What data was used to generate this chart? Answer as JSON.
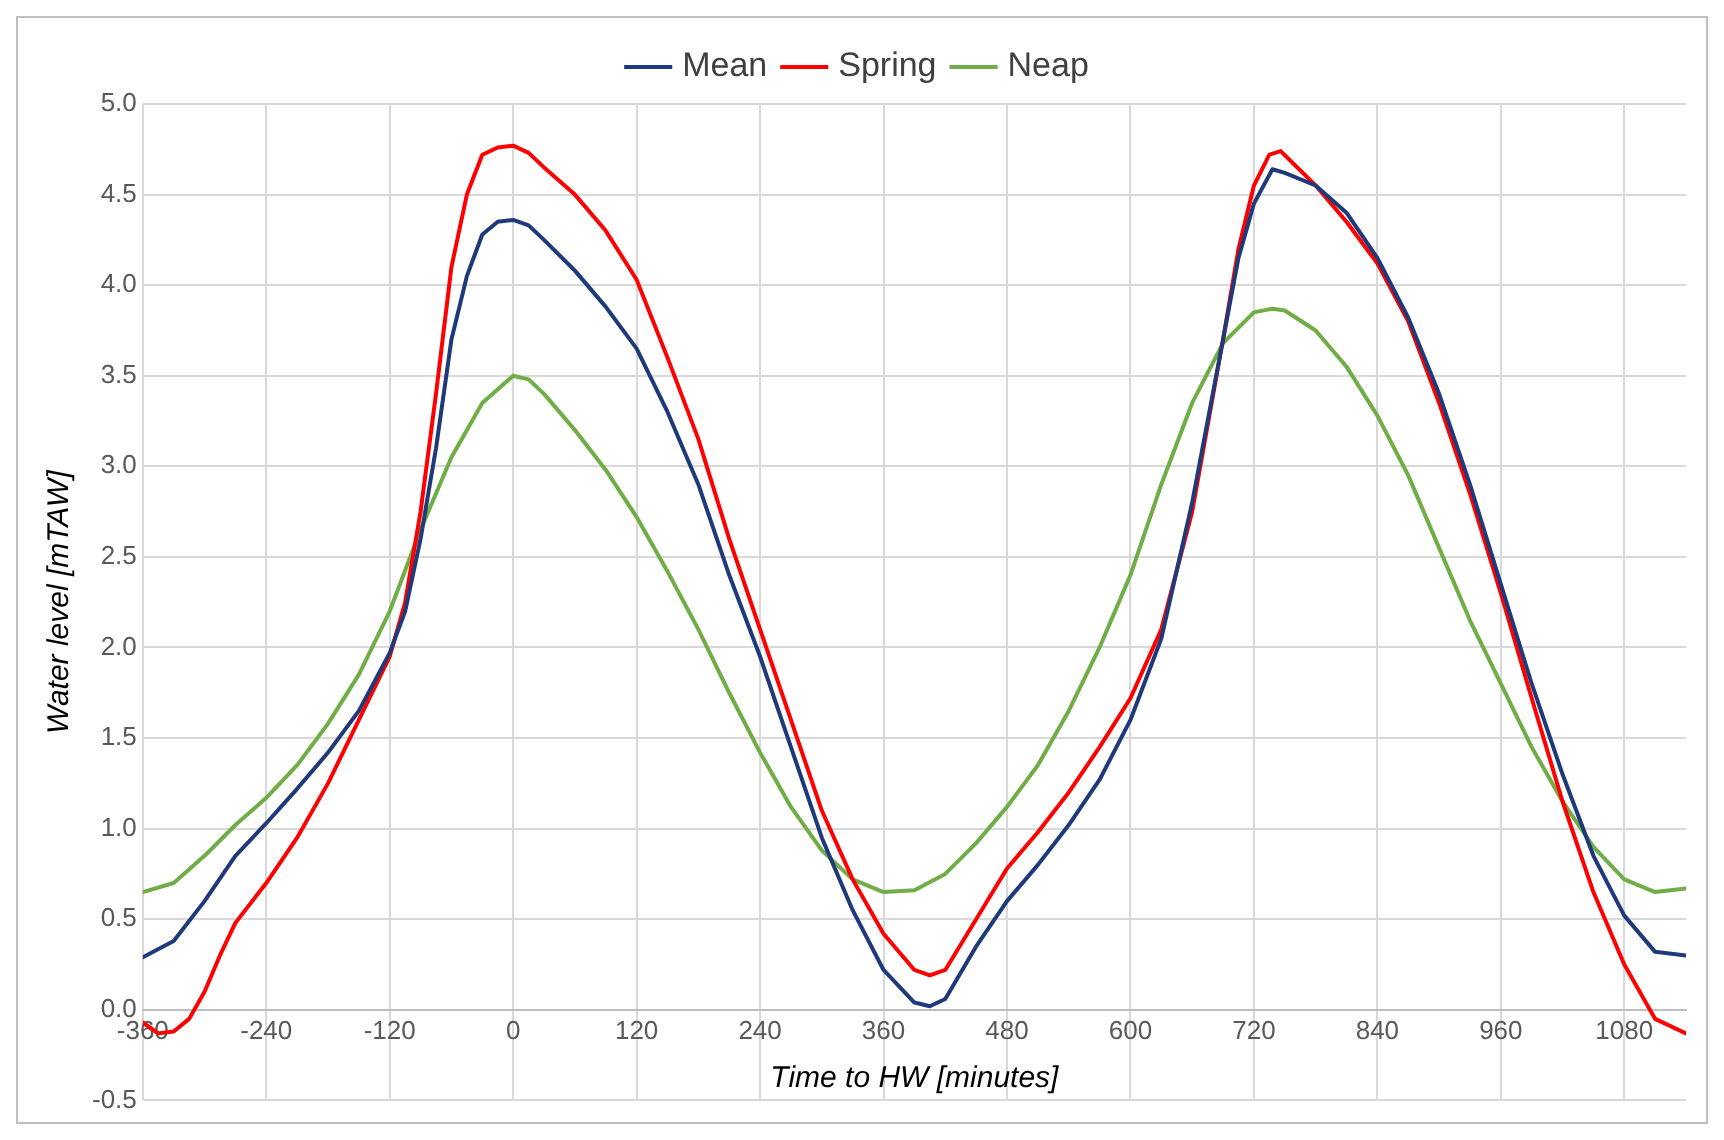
{
  "chart_data": {
    "type": "line",
    "xlabel": "Time to HW [minutes]",
    "ylabel": "Water level [mTAW]",
    "xlim": [
      -360,
      1140
    ],
    "ylim": [
      -0.5,
      5
    ],
    "xticks": [
      -360,
      -240,
      -120,
      0,
      120,
      240,
      360,
      480,
      600,
      720,
      840,
      960,
      1080
    ],
    "yticks": [
      {
        "value": -0.5,
        "label": "-0.5"
      },
      {
        "value": 0,
        "label": "0.0"
      },
      {
        "value": 0.5,
        "label": "0.5"
      },
      {
        "value": 1,
        "label": "1.0"
      },
      {
        "value": 1.5,
        "label": "1.5"
      },
      {
        "value": 2,
        "label": "2.0"
      },
      {
        "value": 2.5,
        "label": "2.5"
      },
      {
        "value": 3,
        "label": "3.0"
      },
      {
        "value": 3.5,
        "label": "3.5"
      },
      {
        "value": 4,
        "label": "4.0"
      },
      {
        "value": 4.5,
        "label": "4.5"
      },
      {
        "value": 5,
        "label": "5.0"
      }
    ],
    "grid": true,
    "legend": "top",
    "marker": "none",
    "line_style": "solid",
    "series": [
      {
        "name": "Mean",
        "color": "#1f3a7a",
        "x": [
          -360,
          -330,
          -300,
          -270,
          -240,
          -210,
          -180,
          -150,
          -120,
          -105,
          -90,
          -75,
          -60,
          -45,
          -30,
          -15,
          0,
          15,
          30,
          60,
          90,
          120,
          150,
          180,
          210,
          240,
          270,
          300,
          330,
          360,
          390,
          405,
          420,
          450,
          480,
          510,
          540,
          570,
          600,
          630,
          660,
          690,
          705,
          720,
          738,
          750,
          780,
          810,
          840,
          870,
          900,
          930,
          960,
          990,
          1020,
          1050,
          1080,
          1110,
          1140
        ],
        "values": [
          0.29,
          0.38,
          0.6,
          0.85,
          1.03,
          1.22,
          1.42,
          1.65,
          1.97,
          2.2,
          2.6,
          3.1,
          3.7,
          4.05,
          4.28,
          4.35,
          4.36,
          4.33,
          4.25,
          4.08,
          3.88,
          3.65,
          3.3,
          2.9,
          2.4,
          1.95,
          1.45,
          0.95,
          0.55,
          0.22,
          0.04,
          0.02,
          0.06,
          0.35,
          0.6,
          0.8,
          1.02,
          1.27,
          1.6,
          2.05,
          2.8,
          3.7,
          4.15,
          4.45,
          4.64,
          4.62,
          4.55,
          4.4,
          4.15,
          3.82,
          3.4,
          2.9,
          2.35,
          1.8,
          1.3,
          0.85,
          0.52,
          0.32,
          0.3
        ]
      },
      {
        "name": "Spring",
        "color": "#ff0000",
        "x": [
          -360,
          -345,
          -330,
          -315,
          -300,
          -285,
          -270,
          -240,
          -210,
          -180,
          -150,
          -120,
          -105,
          -90,
          -75,
          -60,
          -45,
          -30,
          -15,
          0,
          15,
          30,
          60,
          90,
          120,
          150,
          180,
          210,
          240,
          270,
          300,
          330,
          360,
          390,
          405,
          420,
          450,
          480,
          510,
          540,
          570,
          600,
          630,
          660,
          690,
          705,
          720,
          735,
          746,
          780,
          810,
          840,
          870,
          900,
          930,
          960,
          990,
          1020,
          1050,
          1080,
          1110,
          1140
        ],
        "values": [
          -0.07,
          -0.13,
          -0.12,
          -0.05,
          0.1,
          0.3,
          0.48,
          0.7,
          0.95,
          1.25,
          1.6,
          1.95,
          2.25,
          2.75,
          3.4,
          4.1,
          4.5,
          4.72,
          4.76,
          4.77,
          4.73,
          4.65,
          4.5,
          4.3,
          4.03,
          3.6,
          3.15,
          2.6,
          2.1,
          1.6,
          1.1,
          0.72,
          0.42,
          0.22,
          0.19,
          0.22,
          0.5,
          0.78,
          0.98,
          1.2,
          1.45,
          1.72,
          2.1,
          2.75,
          3.7,
          4.2,
          4.55,
          4.72,
          4.74,
          4.55,
          4.35,
          4.12,
          3.8,
          3.35,
          2.85,
          2.3,
          1.72,
          1.15,
          0.65,
          0.25,
          -0.05,
          -0.13
        ]
      },
      {
        "name": "Neap",
        "color": "#70ad47",
        "x": [
          -360,
          -330,
          -300,
          -270,
          -240,
          -210,
          -180,
          -150,
          -120,
          -90,
          -60,
          -30,
          0,
          15,
          30,
          60,
          90,
          120,
          150,
          180,
          210,
          240,
          270,
          300,
          330,
          360,
          390,
          420,
          450,
          480,
          510,
          540,
          570,
          600,
          630,
          660,
          690,
          720,
          738,
          750,
          780,
          810,
          840,
          870,
          900,
          930,
          960,
          990,
          1020,
          1050,
          1080,
          1110,
          1140
        ],
        "values": [
          0.65,
          0.7,
          0.85,
          1.02,
          1.17,
          1.35,
          1.58,
          1.85,
          2.2,
          2.65,
          3.05,
          3.35,
          3.5,
          3.48,
          3.4,
          3.2,
          2.98,
          2.72,
          2.42,
          2.1,
          1.75,
          1.42,
          1.12,
          0.88,
          0.72,
          0.65,
          0.66,
          0.75,
          0.92,
          1.12,
          1.35,
          1.65,
          2.0,
          2.4,
          2.9,
          3.35,
          3.68,
          3.85,
          3.87,
          3.86,
          3.75,
          3.55,
          3.28,
          2.95,
          2.55,
          2.15,
          1.8,
          1.45,
          1.15,
          0.9,
          0.72,
          0.65,
          0.67
        ]
      }
    ]
  }
}
